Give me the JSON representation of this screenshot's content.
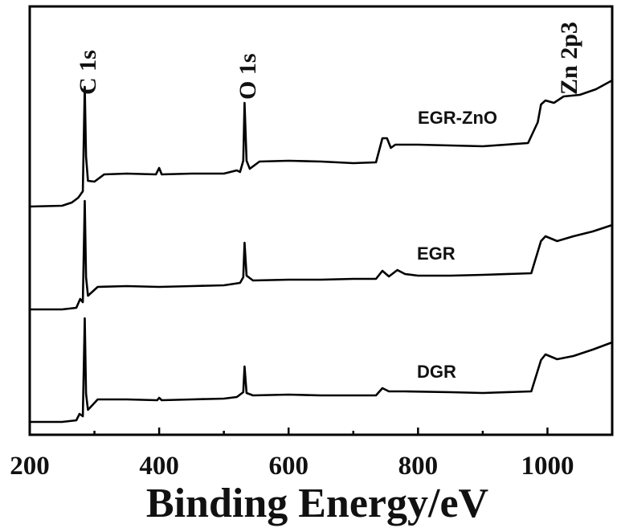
{
  "chart_data": {
    "type": "line",
    "title": "",
    "xlabel": "Binding Energy/eV",
    "ylabel": "",
    "xlim": [
      200,
      1100
    ],
    "xticks": [
      200,
      400,
      600,
      800,
      1000
    ],
    "y_unit": "a.u. (offset, no y-axis labels)",
    "annotations": [
      {
        "text": "C 1s",
        "x": 285
      },
      {
        "text": "O 1s",
        "x": 532
      },
      {
        "text": "Zn 2p3",
        "x": 1022
      }
    ],
    "series": [
      {
        "name": "EGR-ZnO",
        "points": [
          [
            200,
            257
          ],
          [
            250,
            256
          ],
          [
            265,
            252
          ],
          [
            275,
            246
          ],
          [
            282,
            238
          ],
          [
            285,
            108
          ],
          [
            287,
            195
          ],
          [
            290,
            225
          ],
          [
            300,
            226
          ],
          [
            315,
            217
          ],
          [
            350,
            216
          ],
          [
            395,
            217
          ],
          [
            400,
            209
          ],
          [
            404,
            217
          ],
          [
            450,
            216
          ],
          [
            500,
            216
          ],
          [
            520,
            212
          ],
          [
            525,
            214
          ],
          [
            530,
            200
          ],
          [
            532,
            128
          ],
          [
            535,
            200
          ],
          [
            540,
            210
          ],
          [
            555,
            201
          ],
          [
            600,
            200
          ],
          [
            650,
            201
          ],
          [
            700,
            203
          ],
          [
            735,
            202
          ],
          [
            745,
            172
          ],
          [
            752,
            172
          ],
          [
            758,
            184
          ],
          [
            765,
            180
          ],
          [
            800,
            180
          ],
          [
            850,
            181
          ],
          [
            900,
            182
          ],
          [
            970,
            178
          ],
          [
            985,
            152
          ],
          [
            990,
            130
          ],
          [
            997,
            125
          ],
          [
            1010,
            128
          ],
          [
            1025,
            120
          ],
          [
            1050,
            118
          ],
          [
            1075,
            111
          ],
          [
            1100,
            100
          ]
        ]
      },
      {
        "name": "EGR",
        "points": [
          [
            200,
            385
          ],
          [
            250,
            385
          ],
          [
            272,
            383
          ],
          [
            278,
            372
          ],
          [
            282,
            376
          ],
          [
            285,
            250
          ],
          [
            287,
            345
          ],
          [
            290,
            368
          ],
          [
            305,
            357
          ],
          [
            350,
            356
          ],
          [
            400,
            357
          ],
          [
            450,
            356
          ],
          [
            500,
            355
          ],
          [
            525,
            352
          ],
          [
            530,
            345
          ],
          [
            532,
            302
          ],
          [
            535,
            343
          ],
          [
            545,
            349
          ],
          [
            600,
            348
          ],
          [
            650,
            348
          ],
          [
            700,
            347
          ],
          [
            735,
            347
          ],
          [
            745,
            337
          ],
          [
            755,
            344
          ],
          [
            768,
            336
          ],
          [
            780,
            341
          ],
          [
            800,
            343
          ],
          [
            850,
            343
          ],
          [
            900,
            342
          ],
          [
            975,
            340
          ],
          [
            990,
            300
          ],
          [
            997,
            294
          ],
          [
            1015,
            300
          ],
          [
            1040,
            294
          ],
          [
            1070,
            288
          ],
          [
            1100,
            280
          ]
        ]
      },
      {
        "name": "DGR",
        "points": [
          [
            200,
            525
          ],
          [
            250,
            525
          ],
          [
            272,
            523
          ],
          [
            277,
            515
          ],
          [
            282,
            518
          ],
          [
            285,
            396
          ],
          [
            287,
            490
          ],
          [
            290,
            510
          ],
          [
            305,
            497
          ],
          [
            350,
            497
          ],
          [
            397,
            498
          ],
          [
            400,
            495
          ],
          [
            404,
            498
          ],
          [
            450,
            497
          ],
          [
            500,
            496
          ],
          [
            520,
            494
          ],
          [
            530,
            488
          ],
          [
            532,
            456
          ],
          [
            535,
            489
          ],
          [
            545,
            492
          ],
          [
            600,
            491
          ],
          [
            650,
            492
          ],
          [
            700,
            492
          ],
          [
            735,
            492
          ],
          [
            745,
            483
          ],
          [
            755,
            487
          ],
          [
            780,
            487
          ],
          [
            850,
            488
          ],
          [
            900,
            489
          ],
          [
            975,
            487
          ],
          [
            990,
            448
          ],
          [
            997,
            441
          ],
          [
            1015,
            447
          ],
          [
            1040,
            443
          ],
          [
            1070,
            435
          ],
          [
            1100,
            426
          ]
        ]
      }
    ],
    "legend": "inline labels above each curve",
    "grid": false
  },
  "labels": {
    "peak_c1s": "C 1s",
    "peak_o1s": "O 1s",
    "peak_zn": "Zn 2p3",
    "series_egr_zno": "EGR-ZnO",
    "series_egr": "EGR",
    "series_dgr": "DGR",
    "xlabel": "Binding Energy/eV"
  }
}
